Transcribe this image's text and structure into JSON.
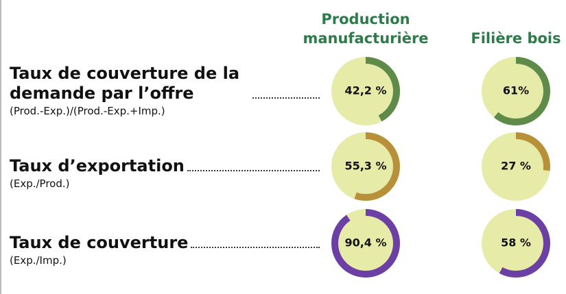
{
  "chart_data": {
    "type": "gauge",
    "categories": [
      "Taux de couverture de la demande par l’offre",
      "Taux d’exportation",
      "Taux de couverture"
    ],
    "category_notes": [
      "(Prod.-Exp.)/(Prod.-Exp.+Imp.)",
      "(Exp./Prod.)",
      "(Exp./Imp.)"
    ],
    "colors": [
      "#5e8a4a",
      "#b8903a",
      "#6b3fa3"
    ],
    "track_color": "#e6eca8",
    "ylim": [
      0,
      100
    ],
    "series": [
      {
        "name": "Production manufacturière",
        "values": [
          42.2,
          55.3,
          90.4
        ],
        "value_labels": [
          "42,2 %",
          "55,3 %",
          "90,4 %"
        ]
      },
      {
        "name": "Filière bois",
        "values": [
          61,
          27,
          58
        ],
        "value_labels": [
          "61%",
          "27 %",
          "58 %"
        ]
      }
    ]
  }
}
